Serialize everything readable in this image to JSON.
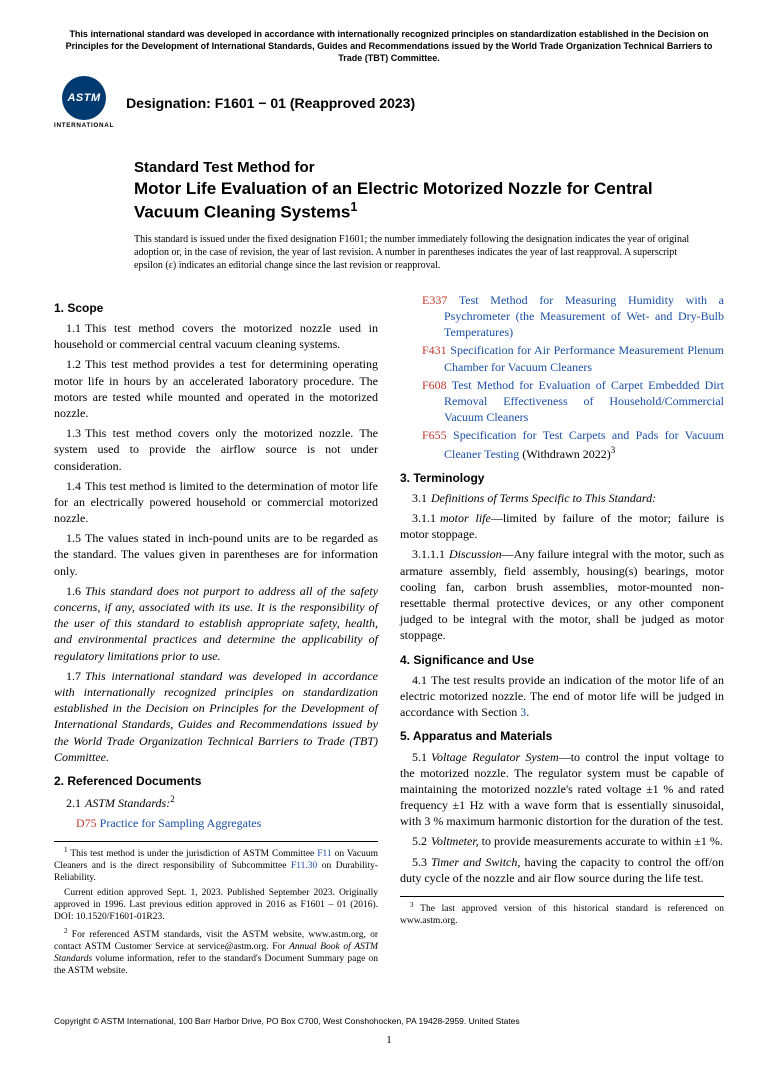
{
  "header": {
    "tbt_note": "This international standard was developed in accordance with internationally recognized principles on standardization established in the Decision on Principles for the Development of International Standards, Guides and Recommendations issued by the World Trade Organization Technical Barriers to Trade (TBT) Committee.",
    "logo_text": "ASTM",
    "logo_sub": "INTERNATIONAL",
    "designation": "Designation: F1601 − 01 (Reapproved 2023)"
  },
  "title": {
    "prefix": "Standard Test Method for",
    "main": "Motor Life Evaluation of an Electric Motorized Nozzle for Central Vacuum Cleaning Systems",
    "sup": "1"
  },
  "issuance": "This standard is issued under the fixed designation F1601; the number immediately following the designation indicates the year of original adoption or, in the case of revision, the year of last revision. A number in parentheses indicates the year of last reapproval. A superscript epsilon (ε) indicates an editorial change since the last revision or reapproval.",
  "sections": {
    "s1_head": "1. Scope",
    "s1_1": "This test method covers the motorized nozzle used in household or commercial central vacuum cleaning systems.",
    "s1_2": "This test method provides a test for determining operating motor life in hours by an accelerated laboratory procedure. The motors are tested while mounted and operated in the motorized nozzle.",
    "s1_3": "This test method covers only the motorized nozzle. The system used to provide the airflow source is not under consideration.",
    "s1_4": "This test method is limited to the determination of motor life for an electrically powered household or commercial motorized nozzle.",
    "s1_5": "The values stated in inch-pound units are to be regarded as the standard. The values given in parentheses are for information only.",
    "s1_6": "This standard does not purport to address all of the safety concerns, if any, associated with its use. It is the responsibility of the user of this standard to establish appropriate safety, health, and environmental practices and determine the applicability of regulatory limitations prior to use.",
    "s1_7": "This international standard was developed in accordance with internationally recognized principles on standardization established in the Decision on Principles for the Development of International Standards, Guides and Recommendations issued by the World Trade Organization Technical Barriers to Trade (TBT) Committee.",
    "s2_head": "2. Referenced Documents",
    "s2_1_label": "ASTM Standards:",
    "s2_1_sup": "2",
    "refs": [
      {
        "code": "D75",
        "title": "Practice for Sampling Aggregates",
        "tail": ""
      },
      {
        "code": "E337",
        "title": "Test Method for Measuring Humidity with a Psychrometer (the Measurement of Wet- and Dry-Bulb Temperatures)",
        "tail": ""
      },
      {
        "code": "F431",
        "title": "Specification for Air Performance Measurement Plenum Chamber for Vacuum Cleaners",
        "tail": ""
      },
      {
        "code": "F608",
        "title": "Test Method for Evaluation of Carpet Embedded Dirt Removal Effectiveness of Household/Commercial Vacuum Cleaners",
        "tail": ""
      },
      {
        "code": "F655",
        "title": "Specification for Test Carpets and Pads for Vacuum Cleaner Testing",
        "tail": " (Withdrawn 2022)",
        "sup": "3"
      }
    ],
    "s3_head": "3. Terminology",
    "s3_1": "Definitions of Terms Specific to This Standard:",
    "s3_1_1_term": "motor life",
    "s3_1_1_def": "—limited by failure of the motor; failure is motor stoppage.",
    "s3_1_1_1_label": "Discussion",
    "s3_1_1_1": "—Any failure integral with the motor, such as armature assembly, field assembly, housing(s) bearings, motor cooling fan, carbon brush assemblies, motor-mounted non-resettable thermal protective devices, or any other component judged to be integral with the motor, shall be judged as motor stoppage.",
    "s4_head": "4. Significance and Use",
    "s4_1_a": "The test results provide an indication of the motor life of an electric motorized nozzle. The end of motor life will be judged in accordance with Section ",
    "s4_1_link": "3",
    "s4_1_b": ".",
    "s5_head": "5. Apparatus and Materials",
    "s5_1_term": "Voltage Regulator System",
    "s5_1": "—to control the input voltage to the motorized nozzle. The regulator system must be capable of maintaining the motorized nozzle's rated voltage ±1 % and rated frequency ±1 Hz with a wave form that is essentially sinusoidal, with 3 % maximum harmonic distortion for the duration of the test.",
    "s5_2_term": "Voltmeter,",
    "s5_2": " to provide measurements accurate to within ±1 %.",
    "s5_3_term": "Timer and Switch,",
    "s5_3": " having the capacity to control the off/on duty cycle of the nozzle and air flow source during the life test."
  },
  "footnotes_left": {
    "f1a": " This test method is under the jurisdiction of ASTM Committee ",
    "f1_link1": "F11",
    "f1b": " on Vacuum Cleaners and is the direct responsibility of Subcommittee ",
    "f1_link2": "F11.30",
    "f1c": " on Durability-Reliability.",
    "f1d": "Current edition approved Sept. 1, 2023. Published September 2023. Originally approved in 1996. Last previous edition approved in 2016 as F1601 – 01 (2016). DOI: 10.1520/F1601-01R23.",
    "f2a": " For referenced ASTM standards, visit the ASTM website, www.astm.org, or contact ASTM Customer Service at service@astm.org. For ",
    "f2_ital": "Annual Book of ASTM Standards",
    "f2b": " volume information, refer to the standard's Document Summary page on the ASTM website."
  },
  "footnotes_right": {
    "f3": " The last approved version of this historical standard is referenced on www.astm.org."
  },
  "footer": {
    "copyright": "Copyright © ASTM International, 100 Barr Harbor Drive, PO Box C700, West Conshohocken, PA 19428-2959. United States",
    "pagenum": "1"
  }
}
